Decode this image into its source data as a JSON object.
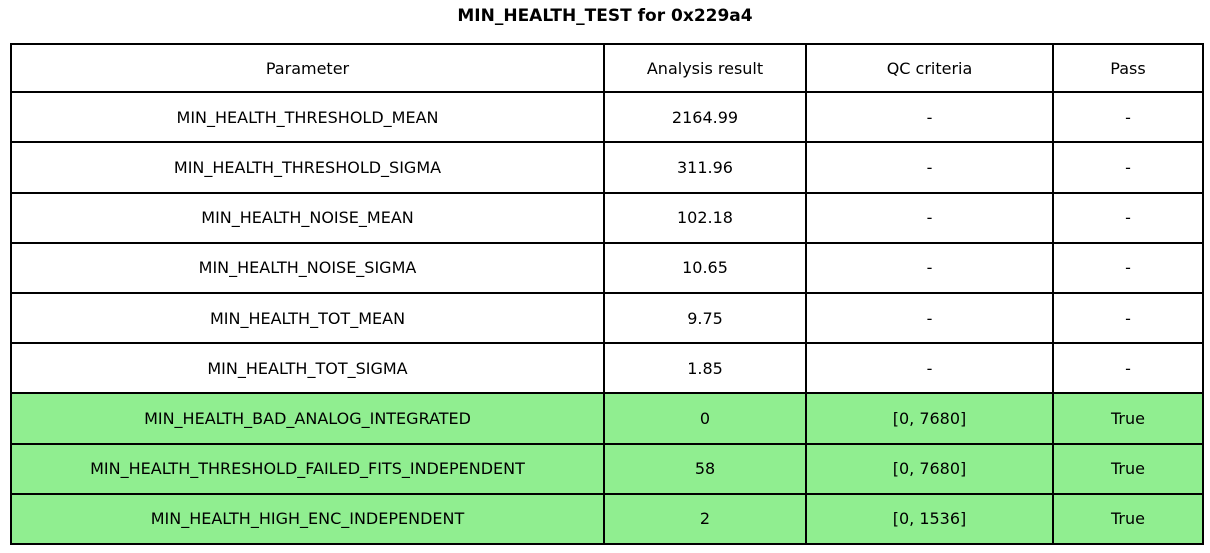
{
  "title": "MIN_HEALTH_TEST for 0x229a4",
  "colors": {
    "pass_green": "#90EE90",
    "border": "#000000",
    "background": "#FFFFFF"
  },
  "table": {
    "columns": [
      "Parameter",
      "Analysis result",
      "QC criteria",
      "Pass"
    ],
    "rows": [
      {
        "parameter": "MIN_HEALTH_THRESHOLD_MEAN",
        "result": "2164.99",
        "qc": "-",
        "pass": "-",
        "highlight": false
      },
      {
        "parameter": "MIN_HEALTH_THRESHOLD_SIGMA",
        "result": "311.96",
        "qc": "-",
        "pass": "-",
        "highlight": false
      },
      {
        "parameter": "MIN_HEALTH_NOISE_MEAN",
        "result": "102.18",
        "qc": "-",
        "pass": "-",
        "highlight": false
      },
      {
        "parameter": "MIN_HEALTH_NOISE_SIGMA",
        "result": "10.65",
        "qc": "-",
        "pass": "-",
        "highlight": false
      },
      {
        "parameter": "MIN_HEALTH_TOT_MEAN",
        "result": "9.75",
        "qc": "-",
        "pass": "-",
        "highlight": false
      },
      {
        "parameter": "MIN_HEALTH_TOT_SIGMA",
        "result": "1.85",
        "qc": "-",
        "pass": "-",
        "highlight": false
      },
      {
        "parameter": "MIN_HEALTH_BAD_ANALOG_INTEGRATED",
        "result": "0",
        "qc": "[0, 7680]",
        "pass": "True",
        "highlight": true
      },
      {
        "parameter": "MIN_HEALTH_THRESHOLD_FAILED_FITS_INDEPENDENT",
        "result": "58",
        "qc": "[0, 7680]",
        "pass": "True",
        "highlight": true
      },
      {
        "parameter": "MIN_HEALTH_HIGH_ENC_INDEPENDENT",
        "result": "2",
        "qc": "[0, 1536]",
        "pass": "True",
        "highlight": true
      }
    ]
  },
  "chart_data": {
    "type": "table",
    "title": "MIN_HEALTH_TEST for 0x229a4",
    "columns": [
      "Parameter",
      "Analysis result",
      "QC criteria",
      "Pass"
    ],
    "rows": [
      [
        "MIN_HEALTH_THRESHOLD_MEAN",
        "2164.99",
        "-",
        "-"
      ],
      [
        "MIN_HEALTH_THRESHOLD_SIGMA",
        "311.96",
        "-",
        "-"
      ],
      [
        "MIN_HEALTH_NOISE_MEAN",
        "102.18",
        "-",
        "-"
      ],
      [
        "MIN_HEALTH_NOISE_SIGMA",
        "10.65",
        "-",
        "-"
      ],
      [
        "MIN_HEALTH_TOT_MEAN",
        "9.75",
        "-",
        "-"
      ],
      [
        "MIN_HEALTH_TOT_SIGMA",
        "1.85",
        "-",
        "-"
      ],
      [
        "MIN_HEALTH_BAD_ANALOG_INTEGRATED",
        "0",
        "[0, 7680]",
        "True"
      ],
      [
        "MIN_HEALTH_THRESHOLD_FAILED_FITS_INDEPENDENT",
        "58",
        "[0, 7680]",
        "True"
      ],
      [
        "MIN_HEALTH_HIGH_ENC_INDEPENDENT",
        "2",
        "[0, 1536]",
        "True"
      ]
    ],
    "highlighted_rows": [
      6,
      7,
      8
    ],
    "highlight_color": "#90EE90"
  }
}
